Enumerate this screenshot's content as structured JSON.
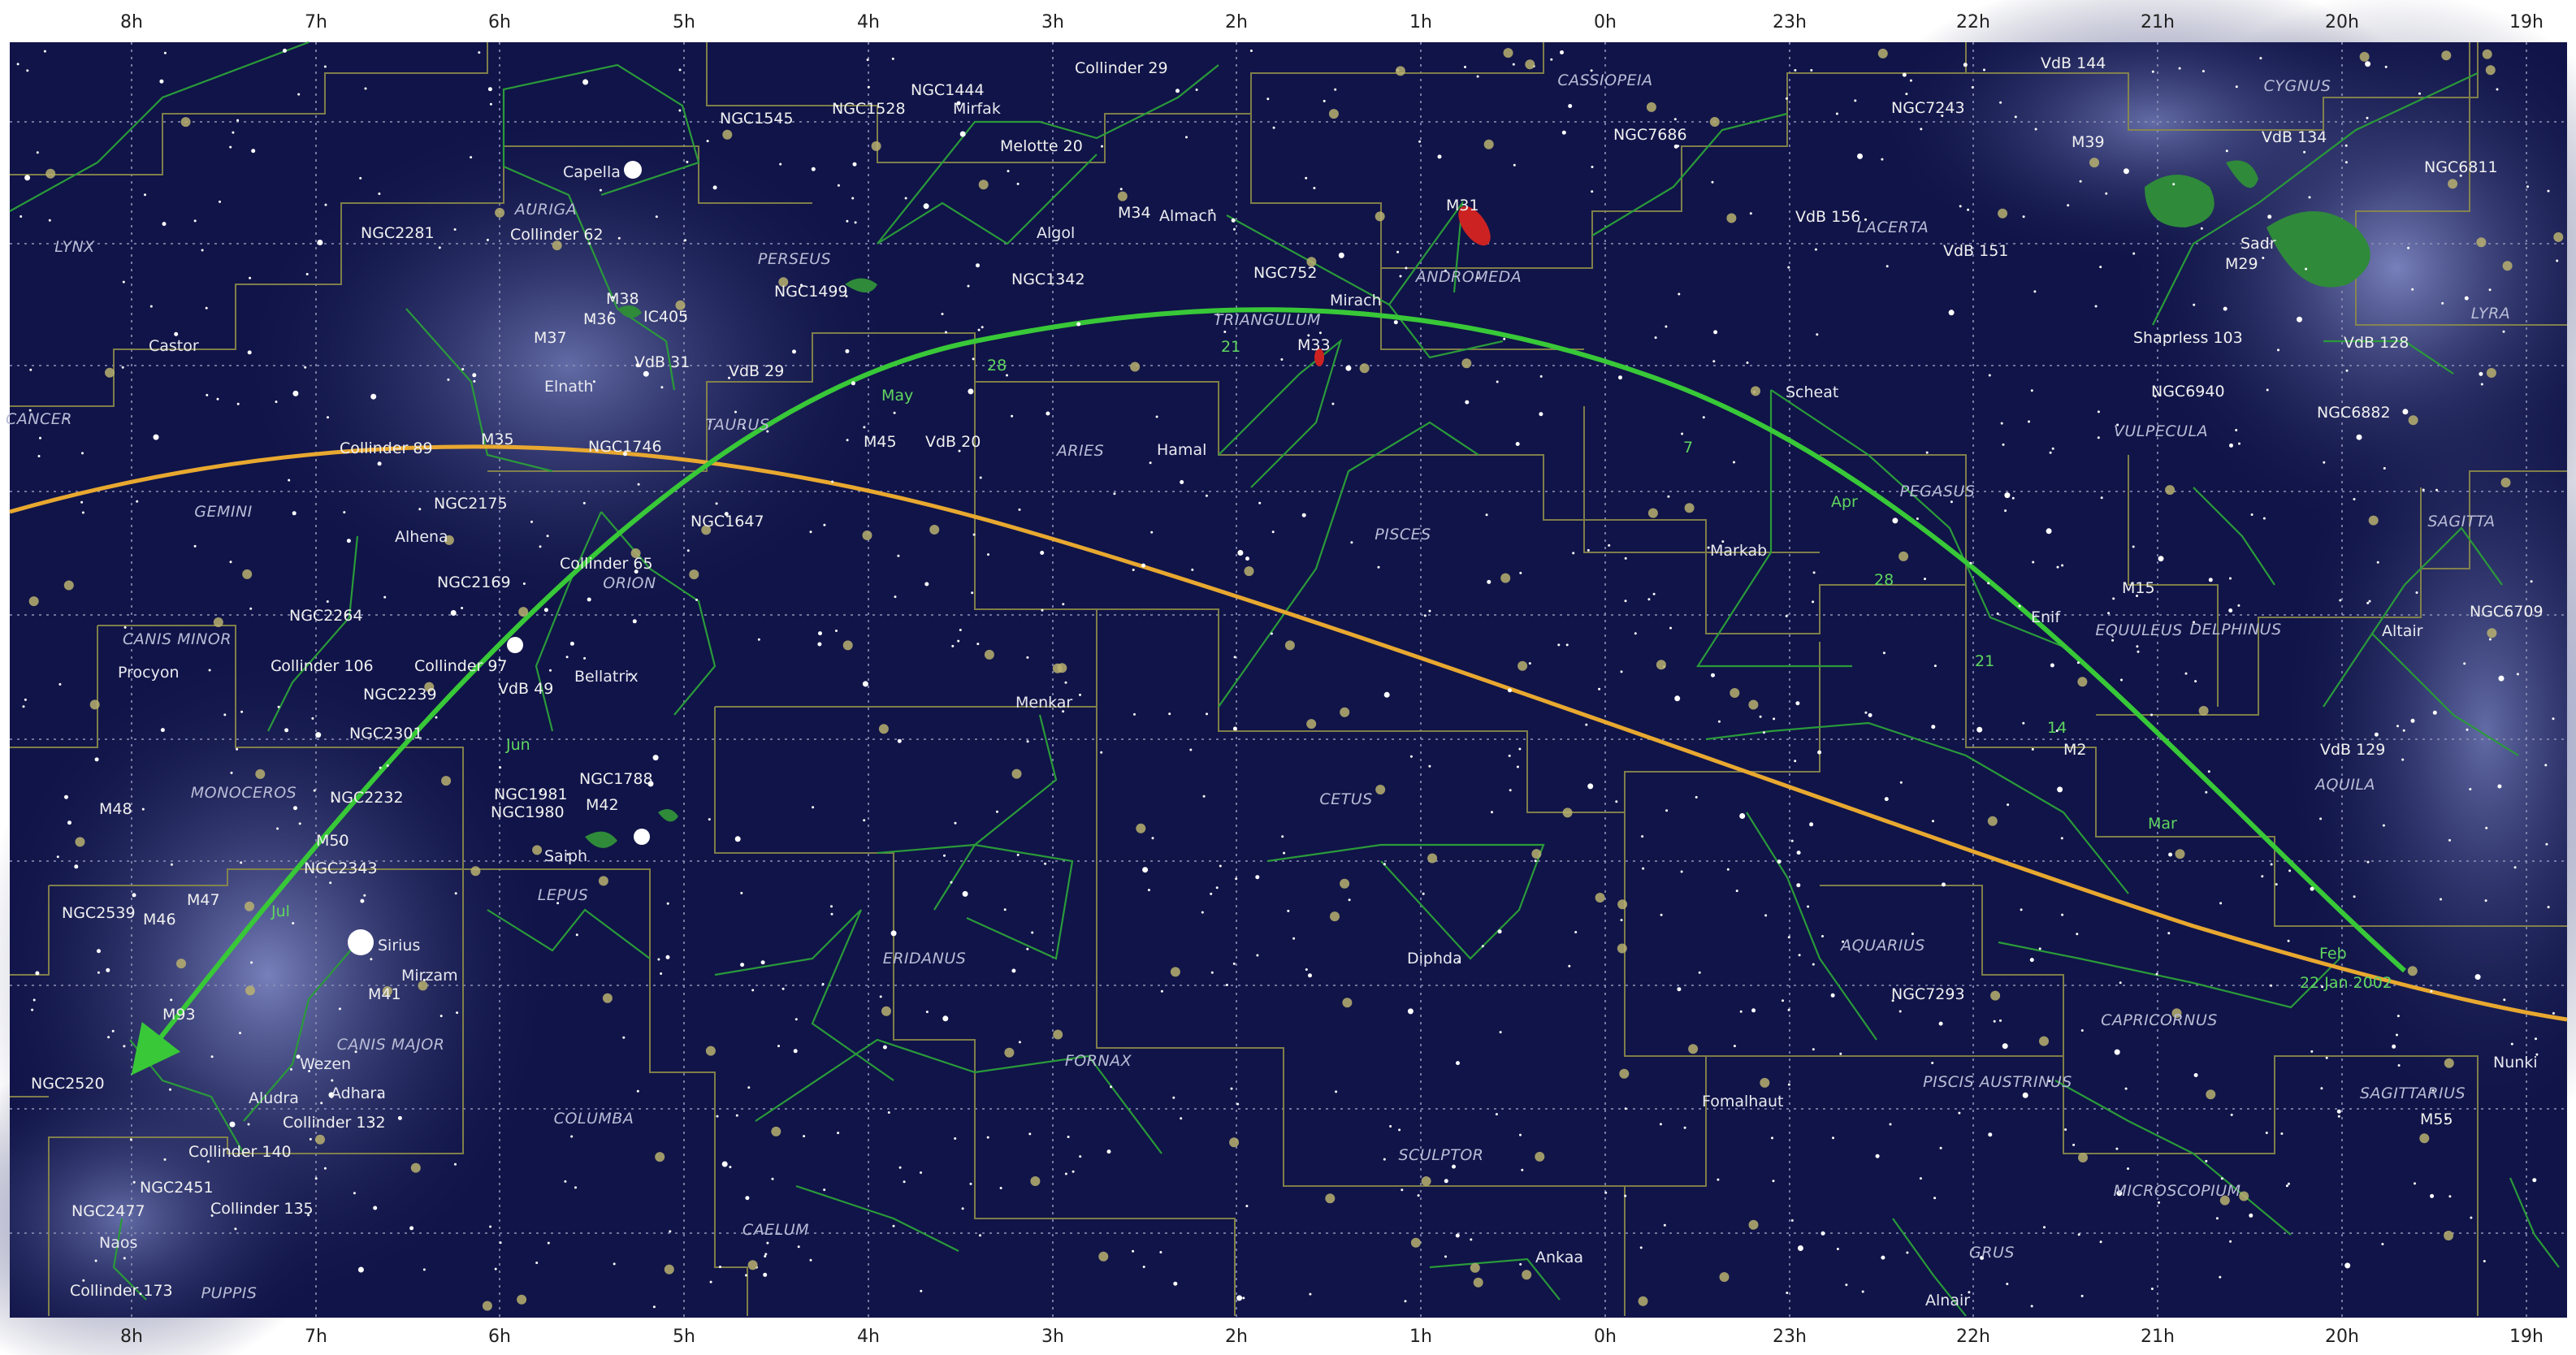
{
  "ra_hours": [
    "8h",
    "7h",
    "6h",
    "5h",
    "4h",
    "3h",
    "2h",
    "1h",
    "0h",
    "23h",
    "22h",
    "21h",
    "20h",
    "19h"
  ],
  "constellations": [
    "CASSIOPEIA",
    "CYGNUS",
    "LYNX",
    "AURIGA",
    "PERSEUS",
    "ANDROMEDA",
    "LACERTA",
    "LYRA",
    "CANCER",
    "TRIANGULUM",
    "TAURUS",
    "ARIES",
    "VULPECULA",
    "GEMINI",
    "PEGASUS",
    "SAGITTA",
    "PISCES",
    "ORION",
    "CANIS MINOR",
    "EQUULEUS",
    "DELPHINUS",
    "AQUILA",
    "MONOCEROS",
    "CETUS",
    "LEPUS",
    "AQUARIUS",
    "ERIDANUS",
    "CANIS MAJOR",
    "CAPRICORNUS",
    "FORNAX",
    "PISCIS AUSTRINUS",
    "COLUMBA",
    "SAGITTARIUS",
    "SCULPTOR",
    "MICROSCOPIUM",
    "CAELUM",
    "GRUS",
    "PUPPIS"
  ],
  "stars": [
    "Capella",
    "Mirfak",
    "Algol",
    "Almach",
    "Mirach",
    "Castor",
    "Elnath",
    "Hamal",
    "Scheat",
    "Alhena",
    "Markab",
    "Procyon",
    "Bellatrix",
    "Enif",
    "Altair",
    "Menkar",
    "Saiph",
    "Sirius",
    "Mirzam",
    "Diphda",
    "Nunki",
    "Wezen",
    "Adhara",
    "Aludra",
    "Fomalhaut",
    "Naos",
    "Ankaa",
    "Alnair"
  ],
  "deep_sky_objects": [
    "NGC1444",
    "Collinder 29",
    "VdB 144",
    "NGC1545",
    "NGC1528",
    "Melotte 20",
    "NGC7243",
    "NGC7686",
    "M39",
    "VdB 134",
    "NGC6811",
    "M31",
    "VdB 156",
    "M34",
    "NGC2281",
    "Collinder 62",
    "VdB 151",
    "NGC752",
    "NGC1342",
    "NGC1499",
    "M38",
    "M36",
    "IC405",
    "M37",
    "M33",
    "Sadr",
    "M29",
    "Shaprless 103",
    "VdB 128",
    "VdB 31",
    "VdB 29",
    "NGC6940",
    "NGC6882",
    "M35",
    "Collinder 89",
    "NGC1746",
    "M45",
    "VdB 20",
    "NGC2175",
    "NGC1647",
    "Collinder 65",
    "NGC2169",
    "M15",
    "NGC2264",
    "NGC6709",
    "Collinder 106",
    "Collinder 97",
    "NGC2239",
    "VdB 49",
    "NGC2301",
    "M2",
    "VdB 129",
    "NGC1788",
    "NGC1981",
    "NGC1980",
    "M42",
    "NGC2232",
    "M48",
    "M50",
    "NGC2343",
    "NGC2539",
    "M47",
    "M46",
    "M41",
    "M93",
    "NGC7293",
    "NGC2520",
    "Collinder 132",
    "Collinder 140",
    "M55",
    "NGC2451",
    "NGC2477",
    "Collinder 135",
    "Collinder 173"
  ],
  "comet_path_labels": [
    "May",
    "Apr",
    "Mar",
    "Jun",
    "Jul",
    "Feb",
    "28",
    "21",
    "14",
    "7",
    "28",
    "21",
    "22 Jan 2002"
  ],
  "colors": {
    "sky": "#101448",
    "milky_way": "#6a75b8",
    "boundary": "#8c8a4a",
    "figure": "#2a9a3a",
    "ecliptic": "#e8a830",
    "comet": "#38c838",
    "star": "#ffffff",
    "cluster": "#b8b070",
    "nebula": "#2f8a3a",
    "galaxy": "#cc2222"
  }
}
